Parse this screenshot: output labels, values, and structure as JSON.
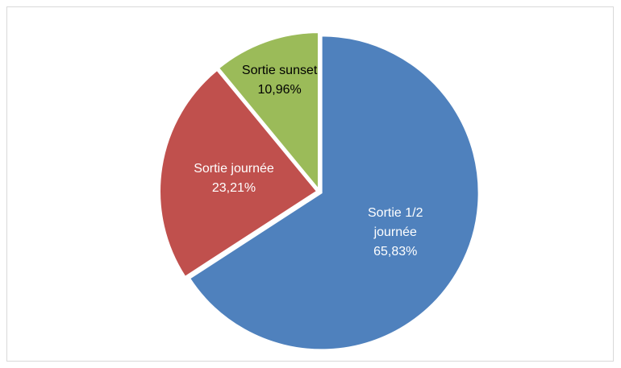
{
  "chart_data": {
    "type": "pie",
    "categories": [
      "Sortie 1/2 journée",
      "Sortie journée",
      "Sortie sunset"
    ],
    "values": [
      65.83,
      23.21,
      10.96
    ],
    "value_labels": [
      "65,83%",
      "23,21%",
      "10,96%"
    ],
    "colors": [
      "#4f81bd",
      "#c0504d",
      "#9bbb59"
    ]
  }
}
